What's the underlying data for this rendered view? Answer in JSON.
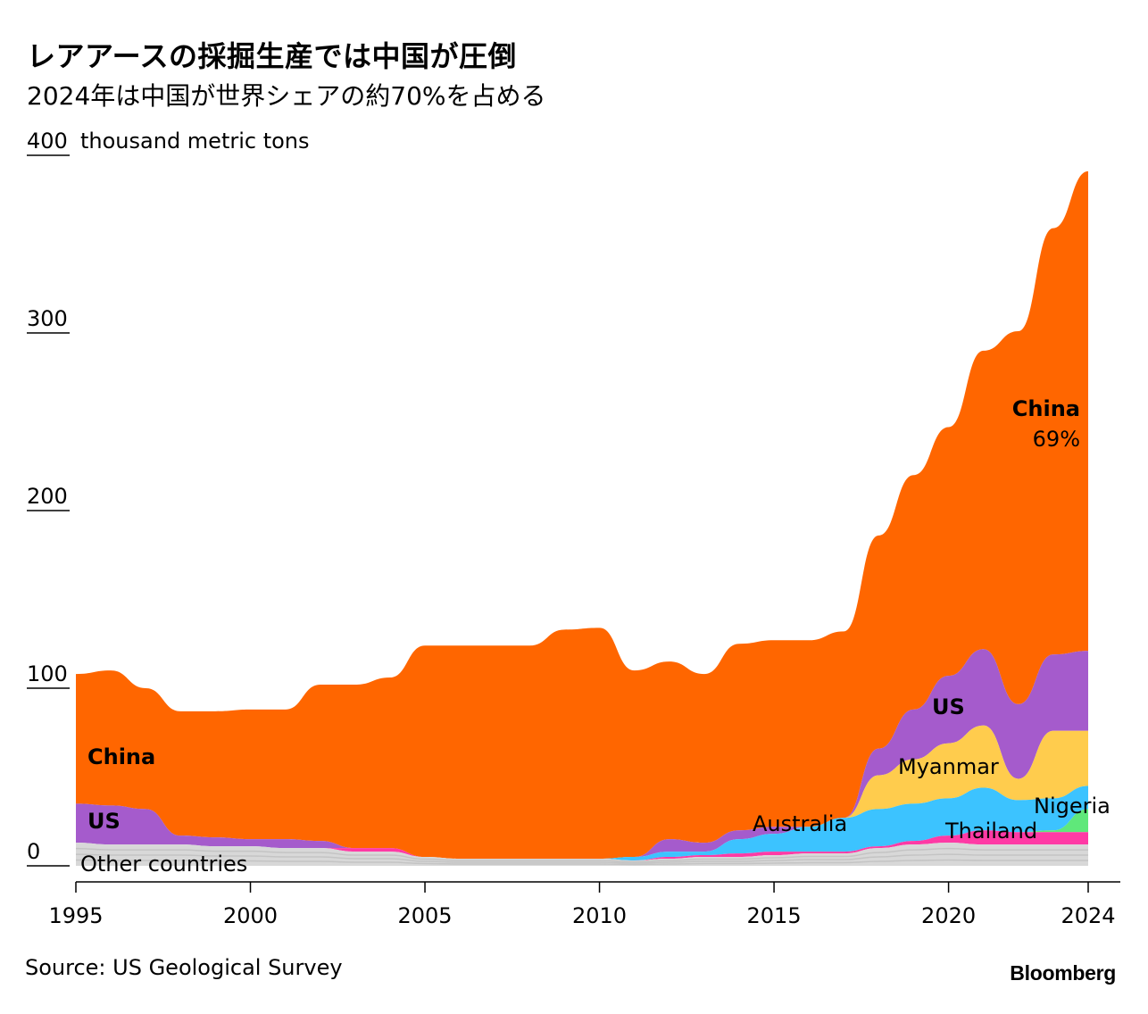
{
  "header": {
    "title": "レアアースの採掘生産では中国が圧倒",
    "subtitle": "2024年は中国が世界シェアの約70%を占める",
    "unit_label": "thousand metric tons"
  },
  "footer": {
    "source": "Source: US Geological Survey",
    "brand": "Bloomberg"
  },
  "chart_data": {
    "type": "area",
    "stacked": true,
    "ylim": [
      0,
      400
    ],
    "y_ticks": [
      "0",
      "100",
      "200",
      "300",
      "400"
    ],
    "x_ticks": [
      "1995",
      "2000",
      "2005",
      "2010",
      "2015",
      "2020",
      "2024"
    ],
    "x": [
      1995,
      1996,
      1997,
      1998,
      1999,
      2000,
      2001,
      2002,
      2003,
      2004,
      2005,
      2006,
      2007,
      2008,
      2009,
      2010,
      2011,
      2012,
      2013,
      2014,
      2015,
      2016,
      2017,
      2018,
      2019,
      2020,
      2021,
      2022,
      2023,
      2024
    ],
    "series": [
      {
        "name": "Other countries",
        "color": "#d8d8d8",
        "values": [
          13,
          12,
          12,
          12,
          11,
          11,
          10,
          10,
          8,
          8,
          5,
          4,
          4,
          4,
          4,
          4,
          3,
          4,
          5,
          5,
          6,
          7,
          7,
          10,
          12,
          13,
          12,
          12,
          12,
          12
        ]
      },
      {
        "name": "Thailand",
        "color": "#ff3aa5",
        "values": [
          0,
          0,
          0,
          0,
          0,
          0,
          0,
          0,
          2,
          2,
          0,
          0,
          0,
          0,
          0,
          0,
          0,
          1,
          1,
          2,
          2,
          1,
          1,
          1,
          2,
          4,
          8,
          7,
          7,
          7
        ]
      },
      {
        "name": "Nigeria",
        "color": "#5fe87a",
        "values": [
          0,
          0,
          0,
          0,
          0,
          0,
          0,
          0,
          0,
          0,
          0,
          0,
          0,
          0,
          0,
          0,
          0,
          0,
          0,
          0,
          0,
          0,
          0,
          0,
          0,
          0,
          0,
          0,
          1,
          13
        ]
      },
      {
        "name": "Australia",
        "color": "#3cc3ff",
        "values": [
          0,
          0,
          0,
          0,
          0,
          0,
          0,
          0,
          0,
          0,
          0,
          0,
          0,
          0,
          0,
          0,
          2,
          3,
          2,
          8,
          10,
          14,
          19,
          21,
          21,
          21,
          24,
          18,
          18,
          13
        ]
      },
      {
        "name": "Myanmar",
        "color": "#ffcc4d",
        "values": [
          0,
          0,
          0,
          0,
          0,
          0,
          0,
          0,
          0,
          0,
          0,
          0,
          0,
          0,
          0,
          0,
          0,
          0,
          0,
          0,
          0,
          0,
          0,
          19,
          25,
          31,
          35,
          12,
          38,
          31
        ]
      },
      {
        "name": "US",
        "color": "#a55bcc",
        "values": [
          22,
          22,
          20,
          5,
          5,
          4,
          5,
          4,
          0,
          0,
          0,
          0,
          0,
          0,
          0,
          0,
          0,
          7,
          5,
          5,
          4,
          0,
          0,
          15,
          28,
          38,
          43,
          42,
          43,
          45
        ]
      },
      {
        "name": "China",
        "color": "#ff6600",
        "values": [
          73,
          76,
          68,
          70,
          71,
          73,
          73,
          88,
          92,
          96,
          119,
          120,
          120,
          120,
          129,
          130,
          105,
          100,
          95,
          105,
          105,
          105,
          105,
          120,
          132,
          140,
          168,
          210,
          240,
          270
        ]
      }
    ],
    "annotations": [
      {
        "text": "China",
        "bold": true
      },
      {
        "text": "69%",
        "bold": false
      }
    ]
  }
}
